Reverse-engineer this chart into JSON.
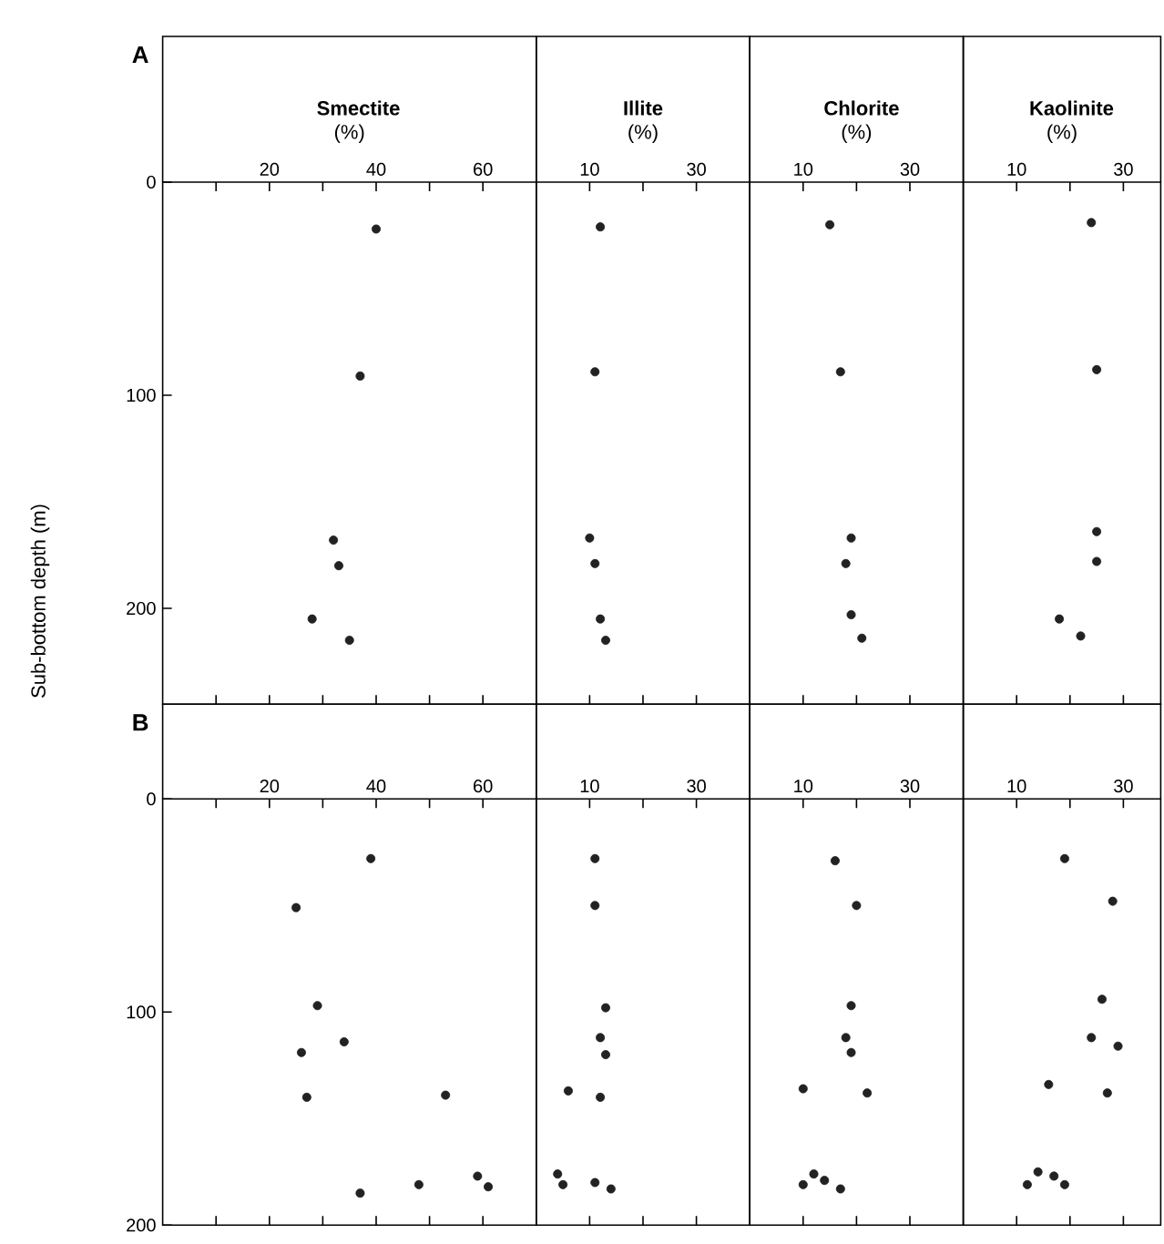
{
  "chart_data": [
    {
      "type": "scatter",
      "xlabel": "**Smectite** (%)",
      "ylabel": "Sub-bottom depth (m)",
      "annotations": [
        "A"
      ],
      "color": "#222222",
      "xlim": [
        0,
        70
      ],
      "ylim": [
        245,
        0
      ],
      "xticks": [
        {
          "value": 10,
          "label": null
        },
        20,
        {
          "value": 30,
          "label": null
        },
        40,
        {
          "value": 50,
          "label": null
        },
        60
      ],
      "yticks": [
        0,
        100,
        200
      ],
      "x": [
        40,
        37,
        32,
        33,
        28,
        35
      ],
      "values": [
        22,
        91,
        168,
        180,
        205,
        215
      ]
    },
    {
      "type": "scatter",
      "xlabel": "**Illite** (%)",
      "color": "#222222",
      "tick_labels": "x",
      "xlim": [
        0,
        40
      ],
      "ylim": [
        245,
        0
      ],
      "xticks": [
        10,
        {
          "value": 20,
          "label": null
        },
        30
      ],
      "x": [
        12,
        11,
        10,
        11,
        12,
        13
      ],
      "values": [
        21,
        89,
        167,
        179,
        205,
        215
      ]
    },
    {
      "type": "scatter",
      "xlabel": "**Chlorite** (%)",
      "color": "#222222",
      "tick_labels": "x",
      "xlim": [
        0,
        40
      ],
      "ylim": [
        245,
        0
      ],
      "xticks": [
        10,
        {
          "value": 20,
          "label": null
        },
        30
      ],
      "x": [
        15,
        17,
        19,
        18,
        19,
        21
      ],
      "values": [
        20,
        89,
        167,
        179,
        203,
        214
      ]
    },
    {
      "type": "scatter",
      "xlabel": "**Kaolinite** (%)",
      "color": "#222222",
      "tick_labels": "x",
      "xlim": [
        0,
        37
      ],
      "ylim": [
        245,
        0
      ],
      "xticks": [
        10,
        {
          "value": 20,
          "label": null
        },
        30
      ],
      "x": [
        24,
        25,
        25,
        25,
        18,
        22
      ],
      "values": [
        19,
        88,
        164,
        178,
        205,
        213
      ]
    },
    {
      "type": "scatter",
      "annotations": [
        "B"
      ],
      "color": "#222222",
      "xlim": [
        0,
        70
      ],
      "ylim": [
        200,
        0
      ],
      "xticks": [
        {
          "value": 10,
          "label": null
        },
        20,
        {
          "value": 30,
          "label": null
        },
        40,
        {
          "value": 50,
          "label": null
        },
        60
      ],
      "yticks": [
        0,
        100,
        200
      ],
      "x": [
        39,
        25,
        29,
        26,
        34,
        27,
        53,
        37,
        48,
        59,
        61
      ],
      "values": [
        28,
        51,
        97,
        119,
        114,
        140,
        139,
        185,
        181,
        177,
        182
      ]
    },
    {
      "type": "scatter",
      "color": "#222222",
      "tick_labels": "x",
      "xlim": [
        0,
        40
      ],
      "ylim": [
        200,
        0
      ],
      "xticks": [
        10,
        {
          "value": 20,
          "label": null
        },
        30
      ],
      "x": [
        11,
        11,
        13,
        12,
        13,
        6,
        12,
        4,
        5,
        11,
        14
      ],
      "values": [
        28,
        50,
        98,
        112,
        120,
        137,
        140,
        176,
        181,
        180,
        183
      ]
    },
    {
      "type": "scatter",
      "color": "#222222",
      "tick_labels": "x",
      "xlim": [
        0,
        40
      ],
      "ylim": [
        200,
        0
      ],
      "xticks": [
        10,
        {
          "value": 20,
          "label": null
        },
        30
      ],
      "x": [
        16,
        20,
        19,
        18,
        19,
        10,
        22,
        12,
        10,
        14,
        17
      ],
      "values": [
        29,
        50,
        97,
        112,
        119,
        136,
        138,
        176,
        181,
        179,
        183
      ]
    },
    {
      "type": "scatter",
      "color": "#222222",
      "tick_labels": "x",
      "xlim": [
        0,
        37
      ],
      "ylim": [
        200,
        0
      ],
      "xticks": [
        10,
        {
          "value": 20,
          "label": null
        },
        30
      ],
      "x": [
        19,
        28,
        26,
        24,
        29,
        16,
        27,
        14,
        12,
        17,
        19
      ],
      "values": [
        28,
        48,
        94,
        112,
        116,
        134,
        138,
        175,
        181,
        177,
        181
      ]
    }
  ]
}
